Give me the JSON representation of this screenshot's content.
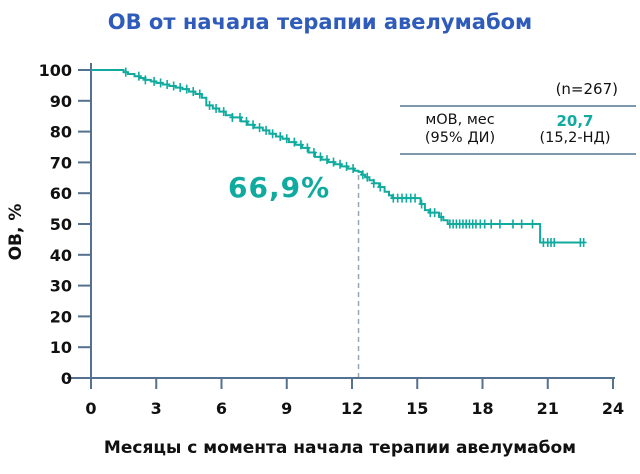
{
  "title": "ОВ от начала терапии авелумабом",
  "axes": {
    "y_label": "ОВ, %",
    "x_label": "Месяцы с момента начала терапии авелумабом"
  },
  "annotation": {
    "text": "66,9%"
  },
  "stats_box": {
    "n": "(n=267)",
    "label_line1": "мОВ, мес",
    "label_line2": "(95% ДИ)",
    "value": "20,7",
    "ci": "(15,2-НД)"
  },
  "colors": {
    "blue": "#2f5cba",
    "teal": "#10ab9e",
    "axis": "#54718f",
    "ink": "#111111",
    "dash": "#9aa6b2",
    "rule": "#7d98ad"
  },
  "chart_data": {
    "type": "line",
    "subtype": "kaplan-meier",
    "title": "ОВ от начала терапии авелумабом",
    "xlabel": "Месяцы с момента начала терапии авелумабом",
    "ylabel": "ОВ, %",
    "xlim": [
      0,
      24
    ],
    "ylim": [
      0,
      100
    ],
    "xticks": [
      0,
      3,
      6,
      9,
      12,
      15,
      18,
      21,
      24
    ],
    "yticks": [
      0,
      10,
      20,
      30,
      40,
      50,
      60,
      70,
      80,
      90,
      100
    ],
    "grid": false,
    "n": 267,
    "median_os_months": "20,7",
    "ci_95": "15,2-НД",
    "landmark": {
      "x": 12.3,
      "y": 66.9,
      "label": "66,9%"
    },
    "steps": [
      [
        0,
        100
      ],
      [
        1.3,
        100
      ],
      [
        1.5,
        99.3
      ],
      [
        1.7,
        98.7
      ],
      [
        2.0,
        98.0
      ],
      [
        2.25,
        97.4
      ],
      [
        2.5,
        96.8
      ],
      [
        2.75,
        96.3
      ],
      [
        3.0,
        95.8
      ],
      [
        3.3,
        95.3
      ],
      [
        3.6,
        94.8
      ],
      [
        3.9,
        94.3
      ],
      [
        4.2,
        93.8
      ],
      [
        4.5,
        93.0
      ],
      [
        4.8,
        92.2
      ],
      [
        5.1,
        91.0
      ],
      [
        5.3,
        88.5
      ],
      [
        5.6,
        87.5
      ],
      [
        5.9,
        86.5
      ],
      [
        6.2,
        85.3
      ],
      [
        6.5,
        84.6
      ],
      [
        6.9,
        83.3
      ],
      [
        7.2,
        82.2
      ],
      [
        7.5,
        81.3
      ],
      [
        7.9,
        80.4
      ],
      [
        8.2,
        79.3
      ],
      [
        8.5,
        78.4
      ],
      [
        8.8,
        77.7
      ],
      [
        9.1,
        76.6
      ],
      [
        9.4,
        75.7
      ],
      [
        9.7,
        74.7
      ],
      [
        10.0,
        73.2
      ],
      [
        10.3,
        71.8
      ],
      [
        10.6,
        70.9
      ],
      [
        10.9,
        70.1
      ],
      [
        11.2,
        69.4
      ],
      [
        11.5,
        68.7
      ],
      [
        11.8,
        68.0
      ],
      [
        12.1,
        67.3
      ],
      [
        12.3,
        66.9
      ],
      [
        12.45,
        66.0
      ],
      [
        12.6,
        65.2
      ],
      [
        12.8,
        64.2
      ],
      [
        13.0,
        63.2
      ],
      [
        13.25,
        62.0
      ],
      [
        13.5,
        60.5
      ],
      [
        13.7,
        59.3
      ],
      [
        13.85,
        58.4
      ],
      [
        15.15,
        56.5
      ],
      [
        15.35,
        54.5
      ],
      [
        15.55,
        53.7
      ],
      [
        16.0,
        52.3
      ],
      [
        16.2,
        51.2
      ],
      [
        16.4,
        50.0
      ],
      [
        20.65,
        44.0
      ],
      [
        22.7,
        44.0
      ]
    ],
    "censor_months": [
      1.6,
      2.2,
      2.5,
      2.9,
      3.2,
      3.5,
      3.8,
      4.1,
      4.4,
      4.7,
      5.0,
      5.45,
      5.75,
      6.1,
      6.5,
      6.85,
      7.15,
      7.45,
      7.75,
      8.05,
      8.35,
      8.7,
      9.0,
      9.35,
      9.65,
      9.95,
      10.25,
      10.55,
      10.85,
      11.15,
      11.45,
      11.75,
      12.05,
      12.5,
      12.7,
      13.0,
      13.3,
      13.9,
      14.1,
      14.3,
      14.5,
      14.7,
      14.9,
      15.2,
      15.6,
      15.8,
      16.1,
      16.5,
      16.65,
      16.8,
      16.95,
      17.1,
      17.25,
      17.4,
      17.55,
      17.7,
      17.9,
      18.1,
      18.4,
      18.8,
      19.4,
      19.8,
      20.3,
      20.8,
      21.0,
      21.15,
      21.3,
      22.5,
      22.65
    ]
  }
}
